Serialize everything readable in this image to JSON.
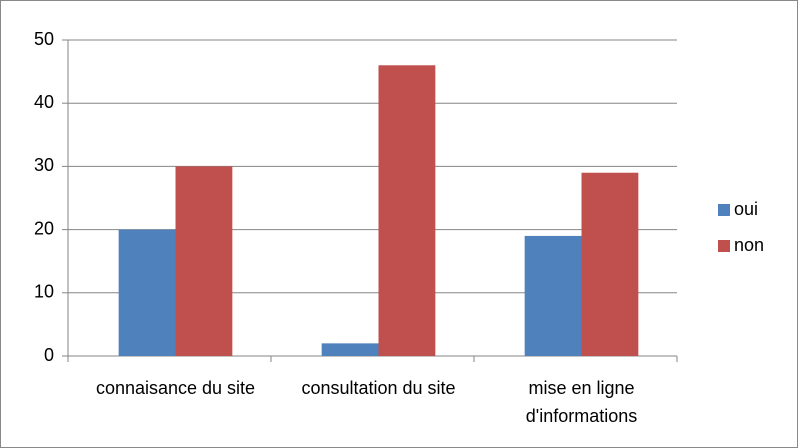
{
  "chart_data": {
    "type": "bar",
    "categories": [
      "connaisance du site",
      "consultation du site",
      "mise en ligne d'informations"
    ],
    "series": [
      {
        "name": "oui",
        "color": "#4f81bd",
        "values": [
          20,
          2,
          19
        ]
      },
      {
        "name": "non",
        "color": "#c0504d",
        "values": [
          30,
          46,
          29
        ]
      }
    ],
    "ylim": [
      0,
      50
    ],
    "yticks": [
      0,
      10,
      20,
      30,
      40,
      50
    ],
    "grid": true,
    "legend": "right"
  }
}
